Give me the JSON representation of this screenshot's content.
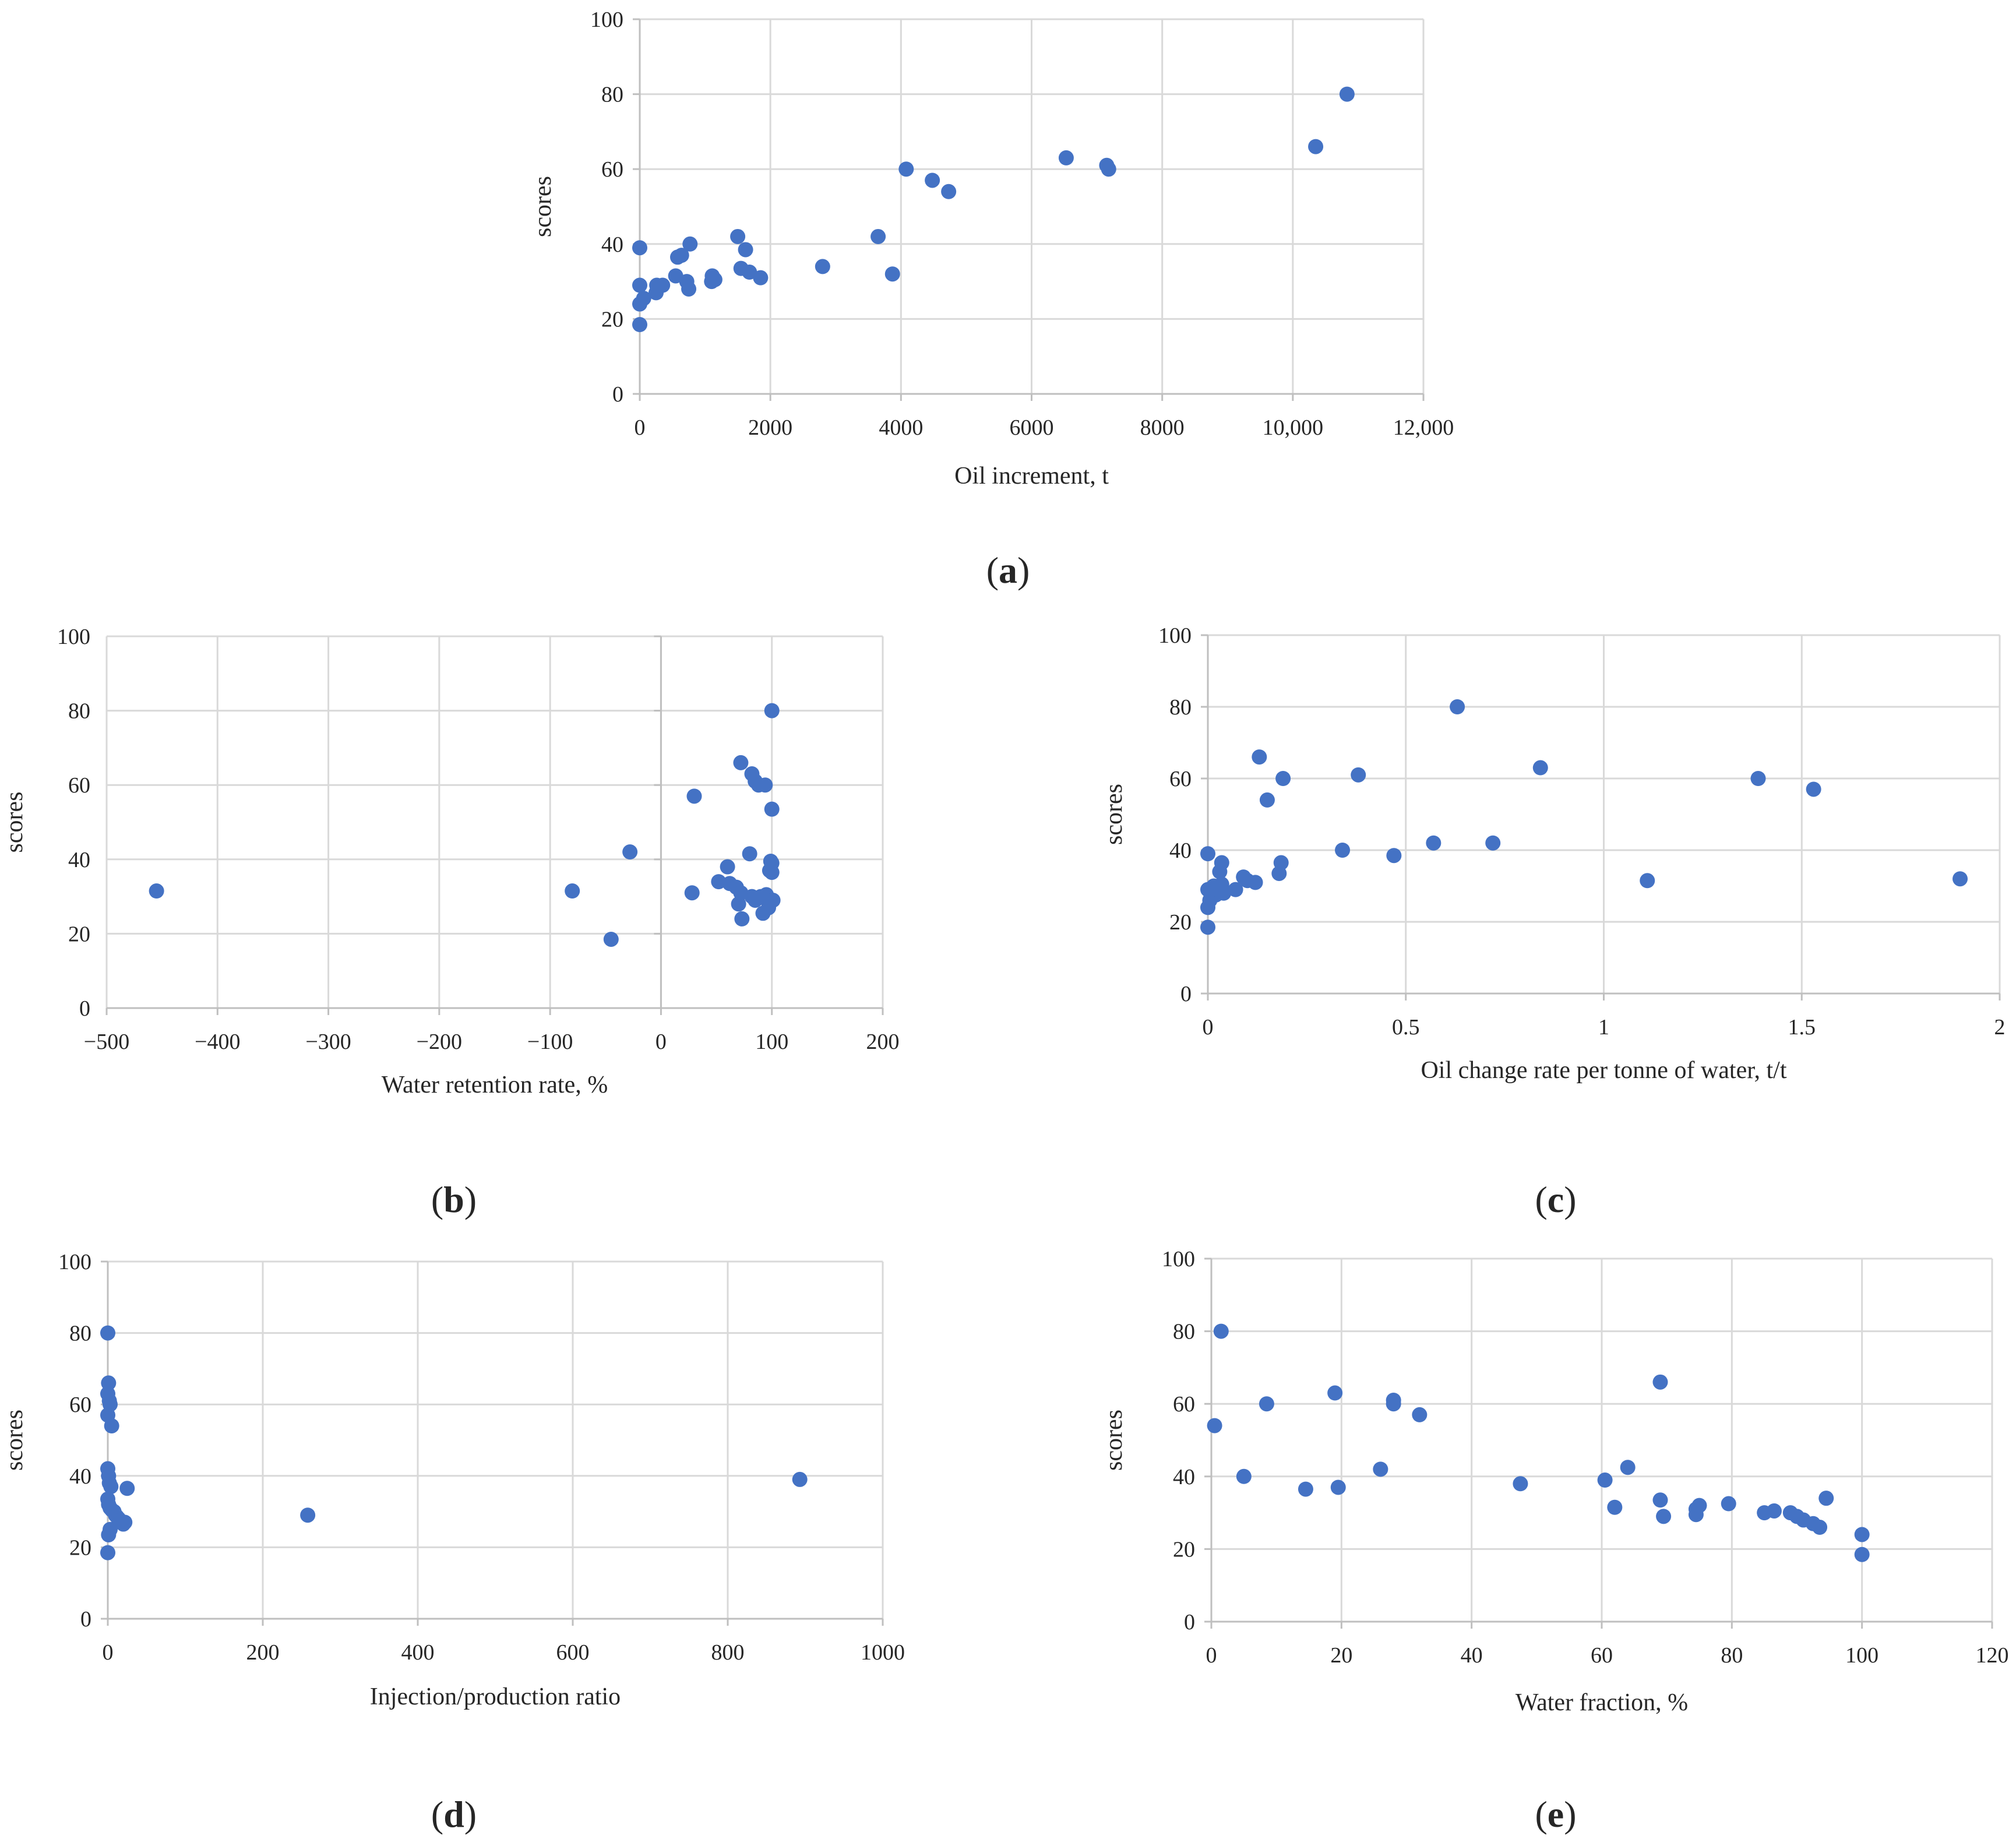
{
  "colors": {
    "marker": "#4472C4",
    "grid": "#d9d9d9",
    "axis": "#bfbfbf",
    "text": "#262626"
  },
  "chart_data": [
    {
      "panel": "a",
      "type": "scatter",
      "panel_label": {
        "open": "(",
        "letter": "a",
        "close": ")"
      },
      "xlabel": "Oil increment, t",
      "ylabel": "scores",
      "xlim": [
        0,
        12000
      ],
      "ylim": [
        0,
        100
      ],
      "x_ticks": [
        0,
        2000,
        4000,
        6000,
        8000,
        10000,
        12000
      ],
      "x_tick_labels": [
        "0",
        "2000",
        "4000",
        "6000",
        "8000",
        "10,000",
        "12,000"
      ],
      "y_ticks": [
        0,
        20,
        40,
        60,
        80,
        100
      ],
      "y_tick_labels": [
        "0",
        "20",
        "40",
        "60",
        "80",
        "100"
      ],
      "points": [
        [
          0,
          39
        ],
        [
          0,
          29
        ],
        [
          0,
          24
        ],
        [
          0,
          18.5
        ],
        [
          60,
          25.5
        ],
        [
          250,
          27
        ],
        [
          260,
          29
        ],
        [
          350,
          29
        ],
        [
          550,
          31.5
        ],
        [
          580,
          36.5
        ],
        [
          640,
          37
        ],
        [
          720,
          30
        ],
        [
          750,
          28
        ],
        [
          770,
          40
        ],
        [
          1100,
          30
        ],
        [
          1110,
          31.5
        ],
        [
          1150,
          30.5
        ],
        [
          1500,
          42
        ],
        [
          1550,
          33.5
        ],
        [
          1620,
          38.5
        ],
        [
          1680,
          32.5
        ],
        [
          1850,
          31
        ],
        [
          2800,
          34
        ],
        [
          3650,
          42
        ],
        [
          3870,
          32
        ],
        [
          4080,
          60
        ],
        [
          4480,
          57
        ],
        [
          4730,
          54
        ],
        [
          6530,
          63
        ],
        [
          7150,
          61
        ],
        [
          7180,
          60
        ],
        [
          10350,
          66
        ],
        [
          10830,
          80
        ]
      ]
    },
    {
      "panel": "b",
      "type": "scatter",
      "panel_label": {
        "open": "(",
        "letter": "b",
        "close": ")"
      },
      "xlabel": "Water retention rate, %",
      "ylabel": "scores",
      "xlim": [
        -500,
        200
      ],
      "ylim": [
        0,
        100
      ],
      "x_ticks": [
        -500,
        -400,
        -300,
        -200,
        -100,
        0,
        100,
        200
      ],
      "x_tick_labels": [
        "−500",
        "−400",
        "−300",
        "−200",
        "−100",
        "0",
        "100",
        "200"
      ],
      "y_ticks": [
        0,
        20,
        40,
        60,
        80,
        100
      ],
      "y_tick_labels": [
        "0",
        "20",
        "40",
        "60",
        "80",
        "100"
      ],
      "points": [
        [
          -455,
          31.5
        ],
        [
          -80,
          31.5
        ],
        [
          -45,
          18.5
        ],
        [
          -28,
          42
        ],
        [
          28,
          31
        ],
        [
          30,
          57
        ],
        [
          52,
          34
        ],
        [
          60,
          38
        ],
        [
          62,
          33.5
        ],
        [
          68,
          32.5
        ],
        [
          70,
          28
        ],
        [
          72,
          66
        ],
        [
          72,
          31
        ],
        [
          73,
          24
        ],
        [
          80,
          41.5
        ],
        [
          82,
          63
        ],
        [
          82,
          30
        ],
        [
          85,
          29
        ],
        [
          85,
          61
        ],
        [
          88,
          60
        ],
        [
          90,
          30
        ],
        [
          92,
          25.5
        ],
        [
          94,
          60
        ],
        [
          95,
          30.5
        ],
        [
          96,
          29
        ],
        [
          97,
          27
        ],
        [
          98,
          37
        ],
        [
          99,
          39.5
        ],
        [
          100,
          80
        ],
        [
          100,
          53.5
        ],
        [
          100,
          39
        ],
        [
          100,
          36.5
        ],
        [
          101,
          29
        ]
      ]
    },
    {
      "panel": "c",
      "type": "scatter",
      "panel_label": {
        "open": "(",
        "letter": "c",
        "close": ")"
      },
      "xlabel": "Oil change rate per tonne of water, t/t",
      "ylabel": "scores",
      "xlim": [
        0,
        2
      ],
      "ylim": [
        0,
        100
      ],
      "x_ticks": [
        0,
        0.5,
        1,
        1.5,
        2
      ],
      "x_tick_labels": [
        "0",
        "0.5",
        "1",
        "1.5",
        "2"
      ],
      "y_ticks": [
        0,
        20,
        40,
        60,
        80,
        100
      ],
      "y_tick_labels": [
        "0",
        "20",
        "40",
        "60",
        "80",
        "100"
      ],
      "points": [
        [
          0,
          39
        ],
        [
          0,
          29
        ],
        [
          0,
          24
        ],
        [
          0,
          18.5
        ],
        [
          0.005,
          26
        ],
        [
          0.01,
          28
        ],
        [
          0.015,
          30
        ],
        [
          0.02,
          27.5
        ],
        [
          0.025,
          29
        ],
        [
          0.03,
          34
        ],
        [
          0.035,
          30.5
        ],
        [
          0.035,
          36.5
        ],
        [
          0.04,
          28
        ],
        [
          0.07,
          29
        ],
        [
          0.09,
          32.5
        ],
        [
          0.1,
          31.5
        ],
        [
          0.12,
          31
        ],
        [
          0.13,
          66
        ],
        [
          0.15,
          54
        ],
        [
          0.18,
          33.5
        ],
        [
          0.185,
          36.5
        ],
        [
          0.19,
          60
        ],
        [
          0.34,
          40
        ],
        [
          0.38,
          61
        ],
        [
          0.47,
          38.5
        ],
        [
          0.57,
          42
        ],
        [
          0.63,
          80
        ],
        [
          0.72,
          42
        ],
        [
          0.84,
          63
        ],
        [
          1.11,
          31.5
        ],
        [
          1.39,
          60
        ],
        [
          1.53,
          57
        ],
        [
          1.9,
          32
        ]
      ]
    },
    {
      "panel": "d",
      "type": "scatter",
      "panel_label": {
        "open": "(",
        "letter": "d",
        "close": ")"
      },
      "xlabel": "Injection/production ratio",
      "ylabel": "scores",
      "xlim": [
        0,
        1000
      ],
      "ylim": [
        0,
        100
      ],
      "x_ticks": [
        0,
        200,
        400,
        600,
        800,
        1000
      ],
      "x_tick_labels": [
        "0",
        "200",
        "400",
        "600",
        "800",
        "1000"
      ],
      "y_ticks": [
        0,
        20,
        40,
        60,
        80,
        100
      ],
      "y_tick_labels": [
        "0",
        "20",
        "40",
        "60",
        "80",
        "100"
      ],
      "points": [
        [
          0,
          80
        ],
        [
          1,
          66
        ],
        [
          0,
          63
        ],
        [
          2,
          61
        ],
        [
          3,
          60
        ],
        [
          0,
          57
        ],
        [
          5,
          54
        ],
        [
          0,
          42
        ],
        [
          1,
          40
        ],
        [
          2,
          38
        ],
        [
          4,
          37
        ],
        [
          25,
          36.5
        ],
        [
          0,
          33.5
        ],
        [
          1,
          32
        ],
        [
          3,
          31
        ],
        [
          5,
          30.5
        ],
        [
          8,
          30
        ],
        [
          10,
          29
        ],
        [
          12,
          28.5
        ],
        [
          14,
          28
        ],
        [
          16,
          27.5
        ],
        [
          18,
          27
        ],
        [
          20,
          26.5
        ],
        [
          3,
          25
        ],
        [
          1,
          23.5
        ],
        [
          0,
          18.5
        ],
        [
          258,
          29
        ],
        [
          893,
          39
        ],
        [
          22,
          27
        ]
      ]
    },
    {
      "panel": "e",
      "type": "scatter",
      "panel_label": {
        "open": "(",
        "letter": "e",
        "close": ")"
      },
      "xlabel": "Water fraction, %",
      "ylabel": "scores",
      "xlim": [
        0,
        120
      ],
      "ylim": [
        0,
        100
      ],
      "x_ticks": [
        0,
        20,
        40,
        60,
        80,
        100,
        120
      ],
      "x_tick_labels": [
        "0",
        "20",
        "40",
        "60",
        "80",
        "100",
        "120"
      ],
      "y_ticks": [
        0,
        20,
        40,
        60,
        80,
        100
      ],
      "y_tick_labels": [
        "0",
        "20",
        "40",
        "60",
        "80",
        "100"
      ],
      "points": [
        [
          1.5,
          80
        ],
        [
          0.5,
          54
        ],
        [
          8.5,
          60
        ],
        [
          19,
          63
        ],
        [
          5,
          40
        ],
        [
          14.5,
          36.5
        ],
        [
          19.5,
          37
        ],
        [
          26,
          42
        ],
        [
          28,
          61
        ],
        [
          28,
          60
        ],
        [
          32,
          57
        ],
        [
          47.5,
          38
        ],
        [
          60.5,
          39
        ],
        [
          62,
          31.5
        ],
        [
          64,
          42.5
        ],
        [
          69,
          66
        ],
        [
          69,
          33.5
        ],
        [
          69.5,
          29
        ],
        [
          74.5,
          31
        ],
        [
          74.5,
          29.5
        ],
        [
          75,
          32
        ],
        [
          79.5,
          32.5
        ],
        [
          85,
          30
        ],
        [
          86.5,
          30.5
        ],
        [
          89,
          30
        ],
        [
          90,
          29
        ],
        [
          91,
          28
        ],
        [
          92.5,
          27
        ],
        [
          93.5,
          26
        ],
        [
          94.5,
          34
        ],
        [
          100,
          24
        ],
        [
          100,
          18.5
        ]
      ]
    }
  ]
}
